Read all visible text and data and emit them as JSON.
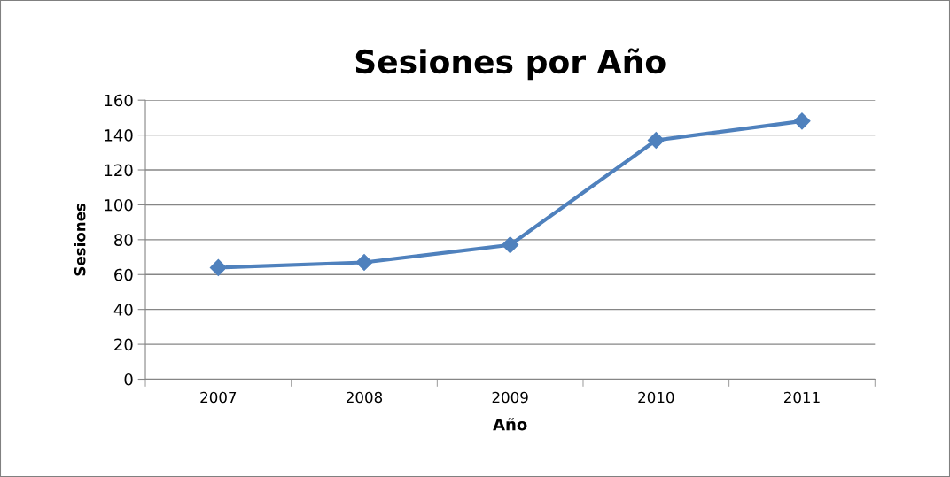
{
  "chart_data": {
    "type": "line",
    "title": "Sesiones por Año",
    "xlabel": "Año",
    "ylabel": "Sesiones",
    "categories": [
      "2007",
      "2008",
      "2009",
      "2010",
      "2011"
    ],
    "series": [
      {
        "color": "#4f81bd",
        "values": [
          64,
          67,
          77,
          137,
          148
        ]
      }
    ],
    "marker": "diamond",
    "line_style": "solid",
    "ylim": [
      0,
      160
    ],
    "yticks": [
      0,
      20,
      40,
      60,
      80,
      100,
      120,
      140,
      160
    ],
    "grid": "y",
    "legend": false
  }
}
